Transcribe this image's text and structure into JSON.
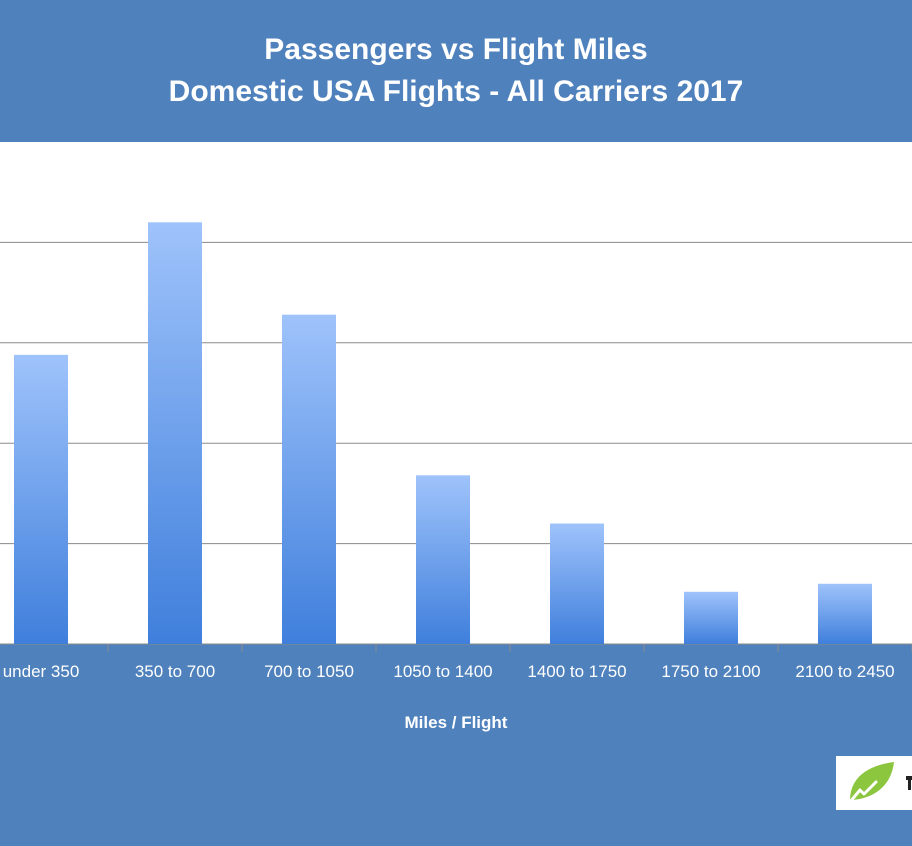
{
  "chart_data": {
    "type": "bar",
    "title_lines": [
      "Passengers vs Flight Miles",
      "Domestic USA Flights - All Carriers 2017"
    ],
    "xlabel": "Miles / Flight",
    "ylabel": "",
    "categories": [
      "under 350",
      "350 to 700",
      "700 to 1050",
      "1050 to 1400",
      "1400 to 1750",
      "1750 to 2100",
      "2100 to 2450"
    ],
    "values": [
      144,
      210,
      164,
      84,
      60,
      26,
      30
    ],
    "ylim": [
      0,
      250
    ],
    "grid": true,
    "legend": "none",
    "colors": {
      "background": "#4f81bd",
      "plot_area": "#ffffff",
      "gridline": "#8a8a8a",
      "bar_top": "#9fc3fb",
      "bar_bottom": "#3f7fdc",
      "text": "#ffffff"
    }
  },
  "logo": {
    "icon": "leaf-icon",
    "leaf_color": "#8cc63f"
  }
}
